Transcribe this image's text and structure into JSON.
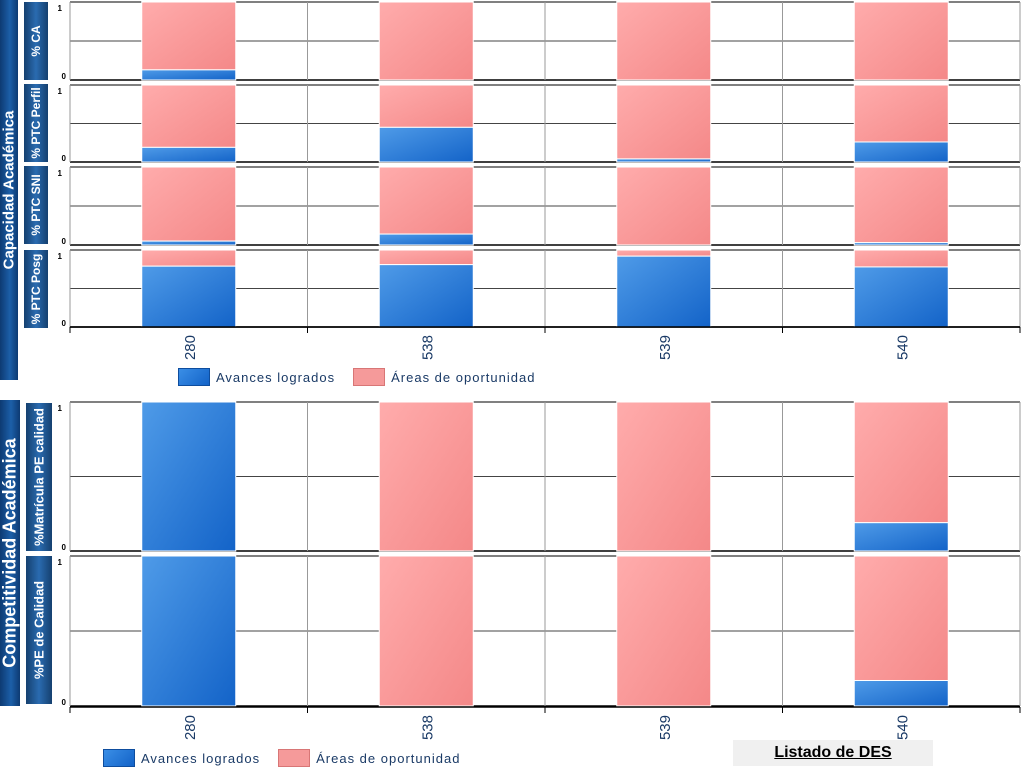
{
  "groups": [
    {
      "label": "Capacidad Académica"
    },
    {
      "label": "Competitividad Académica"
    }
  ],
  "legend": {
    "achieved": "Avances logrados",
    "opportunity": "Áreas de oportunidad"
  },
  "link": {
    "label": "Listado de DES"
  },
  "colors": {
    "achieved": "#1f6fd6",
    "opportunity": "#f79a9a"
  },
  "chart_data": [
    {
      "type": "bar",
      "stacked": true,
      "ylabel": "% CA",
      "categories": [
        "280",
        "538",
        "539",
        "540"
      ],
      "ylim": [
        0,
        1
      ],
      "yticks": [
        "0",
        "1"
      ],
      "series": [
        {
          "name": "Avances logrados",
          "values": [
            0.13,
            0.0,
            0.0,
            0.0
          ]
        },
        {
          "name": "Áreas de oportunidad",
          "values": [
            0.87,
            1.0,
            1.0,
            1.0
          ]
        }
      ]
    },
    {
      "type": "bar",
      "stacked": true,
      "ylabel": "% PTC Perfil",
      "categories": [
        "280",
        "538",
        "539",
        "540"
      ],
      "ylim": [
        0,
        1
      ],
      "yticks": [
        "0",
        "1"
      ],
      "series": [
        {
          "name": "Avances logrados",
          "values": [
            0.19,
            0.45,
            0.04,
            0.26
          ]
        },
        {
          "name": "Áreas de oportunidad",
          "values": [
            0.81,
            0.55,
            0.96,
            0.74
          ]
        }
      ]
    },
    {
      "type": "bar",
      "stacked": true,
      "ylabel": "% PTC SNI",
      "categories": [
        "280",
        "538",
        "539",
        "540"
      ],
      "ylim": [
        0,
        1
      ],
      "yticks": [
        "0",
        "1"
      ],
      "series": [
        {
          "name": "Avances logrados",
          "values": [
            0.05,
            0.14,
            0.0,
            0.03
          ]
        },
        {
          "name": "Áreas de oportunidad",
          "values": [
            0.95,
            0.86,
            1.0,
            0.97
          ]
        }
      ]
    },
    {
      "type": "bar",
      "stacked": true,
      "ylabel": "% PTC Posg",
      "categories": [
        "280",
        "538",
        "539",
        "540"
      ],
      "ylim": [
        0,
        1
      ],
      "yticks": [
        "0",
        "1"
      ],
      "series": [
        {
          "name": "Avances logrados",
          "values": [
            0.79,
            0.81,
            0.92,
            0.78
          ]
        },
        {
          "name": "Áreas de oportunidad",
          "values": [
            0.21,
            0.19,
            0.08,
            0.22
          ]
        }
      ]
    },
    {
      "type": "bar",
      "stacked": true,
      "ylabel": "%Matrícula PE calidad",
      "categories": [
        "280",
        "538",
        "539",
        "540"
      ],
      "ylim": [
        0,
        1
      ],
      "yticks": [
        "0",
        "1"
      ],
      "series": [
        {
          "name": "Avances logrados",
          "values": [
            1.0,
            0.0,
            0.0,
            0.19
          ]
        },
        {
          "name": "Áreas de oportunidad",
          "values": [
            0.0,
            1.0,
            1.0,
            0.81
          ]
        }
      ]
    },
    {
      "type": "bar",
      "stacked": true,
      "ylabel": "%PE de Calidad",
      "categories": [
        "280",
        "538",
        "539",
        "540"
      ],
      "ylim": [
        0,
        1
      ],
      "yticks": [
        "0",
        "1"
      ],
      "series": [
        {
          "name": "Avances logrados",
          "values": [
            1.0,
            0.0,
            0.0,
            0.17
          ]
        },
        {
          "name": "Áreas de oportunidad",
          "values": [
            0.0,
            1.0,
            1.0,
            0.83
          ]
        }
      ]
    }
  ]
}
